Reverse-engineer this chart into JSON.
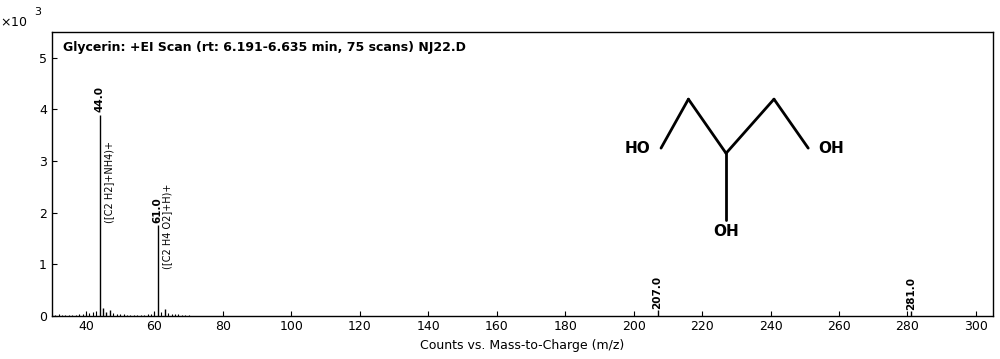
{
  "title": "Glycerin: +EI Scan (rt: 6.191-6.635 min, 75 scans) NJ22.D",
  "xlabel": "Counts vs. Mass-to-Charge (m/z)",
  "xlim": [
    30,
    305
  ],
  "ylim": [
    0,
    5.5
  ],
  "xticks": [
    40,
    60,
    80,
    100,
    120,
    140,
    160,
    180,
    200,
    220,
    240,
    260,
    280,
    300
  ],
  "yticks": [
    0,
    1,
    2,
    3,
    4,
    5
  ],
  "peaks": [
    {
      "mz": 44.0,
      "intensity": 3.9
    },
    {
      "mz": 45.0,
      "intensity": 0.15
    },
    {
      "mz": 46.0,
      "intensity": 0.08
    },
    {
      "mz": 47.0,
      "intensity": 0.1
    },
    {
      "mz": 61.0,
      "intensity": 1.75
    },
    {
      "mz": 63.0,
      "intensity": 0.12
    },
    {
      "mz": 207.0,
      "intensity": 0.1
    },
    {
      "mz": 281.0,
      "intensity": 0.09
    }
  ],
  "noise_mz": [
    31,
    32,
    33,
    34,
    35,
    36,
    37,
    38,
    39,
    40,
    41,
    42,
    43,
    48,
    49,
    50,
    51,
    52,
    53,
    54,
    55,
    56,
    57,
    58,
    59,
    60,
    62,
    64,
    65,
    66,
    67,
    68,
    69,
    70
  ],
  "noise_intensity": [
    0.02,
    0.03,
    0.02,
    0.02,
    0.02,
    0.02,
    0.02,
    0.03,
    0.04,
    0.06,
    0.06,
    0.07,
    0.09,
    0.05,
    0.04,
    0.03,
    0.03,
    0.02,
    0.02,
    0.02,
    0.02,
    0.02,
    0.02,
    0.03,
    0.04,
    0.07,
    0.07,
    0.05,
    0.04,
    0.03,
    0.03,
    0.02,
    0.02,
    0.02
  ],
  "background_color": "#ffffff",
  "bar_color": "#000000",
  "peak44_label": "44.0",
  "peak44_annot": "([C2 H2]+NH4)+",
  "peak61_label": "61.0",
  "peak61_annot": "([C2 H4 O2]+H)+",
  "peak207_label": "207.0",
  "peak281_label": "281.0",
  "mol_lw": 2.0,
  "mol_ho_x": 205,
  "mol_ho_y": 3.25,
  "mol_n1_x": 216,
  "mol_n1_y": 4.2,
  "mol_c_x": 227,
  "mol_c_y": 3.15,
  "mol_n2_x": 241,
  "mol_n2_y": 4.2,
  "mol_oh_x": 253,
  "mol_oh_y": 3.25,
  "mol_ohb_x": 227,
  "mol_ohb_y": 1.85
}
